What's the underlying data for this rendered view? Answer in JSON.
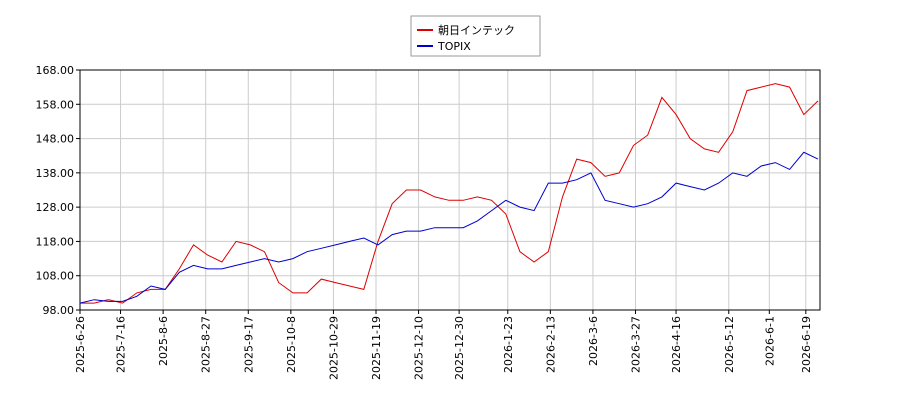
{
  "chart_data": {
    "type": "line",
    "x": [
      "2025-6-26",
      "2025-7-3",
      "2025-7-10",
      "2025-7-17",
      "2025-7-24",
      "2025-7-31",
      "2025-8-7",
      "2025-8-14",
      "2025-8-21",
      "2025-8-28",
      "2025-9-4",
      "2025-9-11",
      "2025-9-18",
      "2025-9-25",
      "2025-10-2",
      "2025-10-9",
      "2025-10-16",
      "2025-10-23",
      "2025-10-30",
      "2025-11-6",
      "2025-11-13",
      "2025-11-20",
      "2025-11-27",
      "2025-12-4",
      "2025-12-11",
      "2025-12-18",
      "2025-12-25",
      "2026-1-1",
      "2026-1-8",
      "2026-1-15",
      "2026-1-22",
      "2026-1-29",
      "2026-2-5",
      "2026-2-12",
      "2026-2-19",
      "2026-2-26",
      "2026-3-5",
      "2026-3-12",
      "2026-3-19",
      "2026-3-26",
      "2026-4-2",
      "2026-4-9",
      "2026-4-16",
      "2026-4-23",
      "2026-4-30",
      "2026-5-7",
      "2026-5-14",
      "2026-5-21",
      "2026-5-28",
      "2026-6-4",
      "2026-6-11",
      "2026-6-18",
      "2026-6-25"
    ],
    "series": [
      {
        "name": "朝日インテック",
        "color": "#dd0000",
        "values": [
          100,
          100,
          101,
          100,
          103,
          104,
          104,
          110,
          117,
          114,
          112,
          118,
          117,
          115,
          106,
          103,
          103,
          107,
          106,
          105,
          104,
          118,
          129,
          133,
          133,
          131,
          130,
          130,
          131,
          130,
          126,
          115,
          112,
          115,
          131,
          142,
          141,
          137,
          138,
          146,
          149,
          160,
          155,
          148,
          145,
          144,
          150,
          162,
          163,
          164,
          163,
          155,
          159
        ]
      },
      {
        "name": "TOPIX",
        "color": "#0000cc",
        "values": [
          100,
          101,
          100.5,
          100.5,
          102,
          105,
          104,
          109,
          111,
          110,
          110,
          111,
          112,
          113,
          112,
          113,
          115,
          116,
          117,
          118,
          119,
          117,
          120,
          121,
          121,
          122,
          122,
          122,
          124,
          127,
          130,
          128,
          127,
          135,
          135,
          136,
          138,
          130,
          129,
          128,
          129,
          131,
          135,
          134,
          133,
          135,
          138,
          137,
          140,
          141,
          139,
          144,
          142
        ]
      }
    ],
    "xlim": [
      "2025-6-26",
      "2026-6-26"
    ],
    "xticks": [
      "2025-6-26",
      "2025-7-16",
      "2025-8-6",
      "2025-8-27",
      "2025-9-17",
      "2025-10-8",
      "2025-10-29",
      "2025-11-19",
      "2025-12-10",
      "2025-12-30",
      "2026-1-23",
      "2026-2-13",
      "2026-3-6",
      "2026-3-27",
      "2026-4-16",
      "2026-5-12",
      "2026-6-1",
      "2026-6-19"
    ],
    "ylim": [
      98,
      168
    ],
    "yticks": [
      {
        "value": 98,
        "label": "98.00"
      },
      {
        "value": 108,
        "label": "108.00"
      },
      {
        "value": 118,
        "label": "118.00"
      },
      {
        "value": 128,
        "label": "128.00"
      },
      {
        "value": 138,
        "label": "138.00"
      },
      {
        "value": 148,
        "label": "148.00"
      },
      {
        "value": 158,
        "label": "158.00"
      },
      {
        "value": 168,
        "label": "168.00"
      }
    ],
    "grid": true
  }
}
